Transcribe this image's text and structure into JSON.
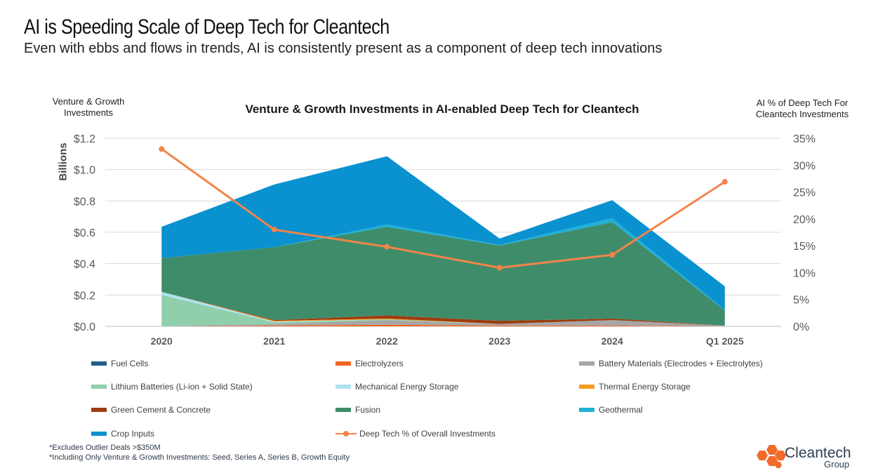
{
  "header": {
    "title": "AI is Speeding Scale of Deep Tech for Cleantech",
    "subtitle": "Even with ebbs and flows in trends, AI is consistently present as a component of deep tech innovations"
  },
  "footnotes": [
    "*Excludes Outlier Deals >$350M",
    "*Including Only Venture & Growth Investments: Seed, Series A, Series B, Growth Equity"
  ],
  "logo": {
    "name": "Cleantech",
    "sub": "Group",
    "color": "#f26b2a"
  },
  "chart_data": {
    "type": "area",
    "title": "Venture & Growth Investments in AI-enabled Deep Tech for Cleantech",
    "ylabel": "Venture & Growth Investments",
    "ylabel_unit": "Billions",
    "y2label": "AI % of Deep Tech For Cleantech Investments",
    "categories": [
      "2020",
      "2021",
      "2022",
      "2023",
      "2024",
      "Q1 2025"
    ],
    "ylim": [
      0,
      1.2
    ],
    "y_ticks": [
      "$0.0",
      "$0.2",
      "$0.4",
      "$0.6",
      "$0.8",
      "$1.0",
      "$1.2"
    ],
    "y2lim": [
      0,
      35
    ],
    "y2_ticks": [
      "0%",
      "5%",
      "10%",
      "15%",
      "20%",
      "25%",
      "30%",
      "35%"
    ],
    "grid": "horizontal",
    "legend_position": "bottom",
    "series": [
      {
        "name": "Fuel Cells",
        "kind": "area",
        "color": "#1f5f8b",
        "values": [
          0,
          0,
          0,
          0,
          0,
          0
        ]
      },
      {
        "name": "Electrolyzers",
        "kind": "area",
        "color": "#f26522",
        "values": [
          0,
          0.005,
          0.01,
          0.005,
          0.005,
          0.0
        ]
      },
      {
        "name": "Battery Materials (Electrodes + Electrolytes)",
        "kind": "area",
        "color": "#a6a6a6",
        "values": [
          0,
          0.01,
          0.03,
          0.01,
          0.035,
          0.005
        ]
      },
      {
        "name": "Lithium Batteries (Li-ion + Solid State)",
        "kind": "area",
        "color": "#8fcfab",
        "values": [
          0.2,
          0.01,
          0.005,
          0.0,
          0.0,
          0.0
        ]
      },
      {
        "name": "Mechanical Energy Storage",
        "kind": "area",
        "color": "#aee2f0",
        "values": [
          0.02,
          0.005,
          0.0,
          0.0,
          0.0,
          0.0
        ]
      },
      {
        "name": "Thermal Energy Storage",
        "kind": "area",
        "color": "#f39c1f",
        "values": [
          0.0,
          0.005,
          0.005,
          0.0,
          0.0,
          0.0
        ]
      },
      {
        "name": "Green Cement & Concrete",
        "kind": "area",
        "color": "#9c3d10",
        "values": [
          0.0,
          0.005,
          0.02,
          0.02,
          0.01,
          0.0
        ]
      },
      {
        "name": "Fusion",
        "kind": "area",
        "color": "#3f8c6a",
        "values": [
          0.215,
          0.465,
          0.565,
          0.48,
          0.615,
          0.095
        ]
      },
      {
        "name": "Geothermal",
        "kind": "area",
        "color": "#1fb0d8",
        "values": [
          0.0,
          0.0,
          0.015,
          0.005,
          0.025,
          0.005
        ]
      },
      {
        "name": "Crop Inputs",
        "kind": "area",
        "color": "#0a91cf",
        "values": [
          0.2,
          0.4,
          0.435,
          0.04,
          0.115,
          0.15
        ]
      },
      {
        "name": "Deep Tech % of Overall Investments",
        "kind": "line",
        "axis": "right",
        "color": "#f2844a",
        "values": [
          33,
          18,
          14.8,
          10.9,
          13.3,
          26.9
        ]
      }
    ]
  }
}
